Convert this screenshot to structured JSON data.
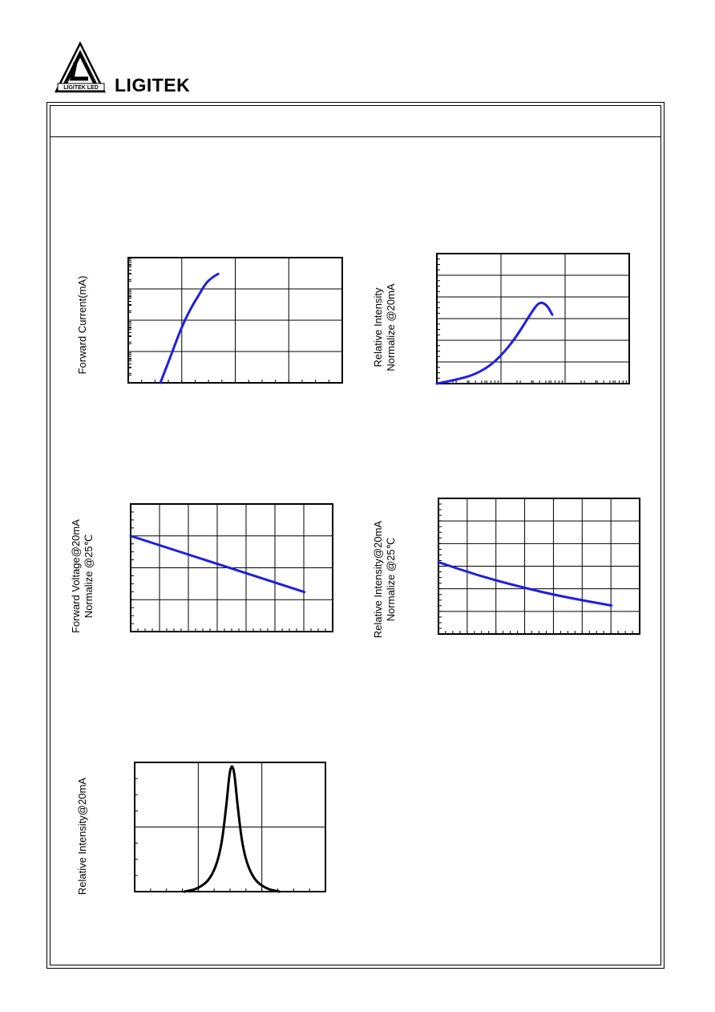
{
  "brand": "LIGITEK",
  "logo_text": "LIGITEK LED",
  "colors": {
    "curve_blue": "#1f1fe0",
    "curve_black": "#000000",
    "frame": "#000000"
  },
  "chart_data": [
    {
      "id": "forward-current",
      "type": "line",
      "ylabel": "Forward Current(mA)",
      "ylabel2": "",
      "yscale": "log",
      "grid": true,
      "x_grid_divisions": 4,
      "y_grid_divisions": 4,
      "color": "#1f1fe0",
      "series": [
        {
          "values": [
            [
              0.15,
              0.0
            ],
            [
              0.2,
              0.22
            ],
            [
              0.25,
              0.45
            ],
            [
              0.3,
              0.62
            ],
            [
              0.33,
              0.7
            ],
            [
              0.36,
              0.79
            ],
            [
              0.39,
              0.84
            ],
            [
              0.42,
              0.87
            ]
          ]
        }
      ]
    },
    {
      "id": "relative-intensity-vs-current",
      "type": "line",
      "ylabel": "Relative Intensity",
      "ylabel2": "Normalize @20mA",
      "xscale": "log",
      "grid": true,
      "x_grid_divisions": 3,
      "y_grid_divisions": 6,
      "color": "#1f1fe0",
      "series": [
        {
          "values": [
            [
              0.0,
              0.0
            ],
            [
              0.1,
              0.03
            ],
            [
              0.2,
              0.07
            ],
            [
              0.3,
              0.16
            ],
            [
              0.4,
              0.33
            ],
            [
              0.48,
              0.52
            ],
            [
              0.53,
              0.63
            ],
            [
              0.57,
              0.61
            ],
            [
              0.6,
              0.53
            ]
          ]
        }
      ]
    },
    {
      "id": "forward-voltage-vs-temp",
      "type": "line",
      "ylabel": "Forward Voltage@20mA",
      "ylabel2": "Normalize @25℃",
      "grid": true,
      "x_grid_divisions": 7,
      "y_grid_divisions": 4,
      "color": "#1f1fe0",
      "series": [
        {
          "values": [
            [
              0.0,
              0.75
            ],
            [
              0.86,
              0.31
            ]
          ]
        }
      ]
    },
    {
      "id": "relative-intensity-vs-temp",
      "type": "line",
      "ylabel": "Relative Intensity@20mA",
      "ylabel2": "Normalize @25℃",
      "grid": true,
      "x_grid_divisions": 7,
      "y_grid_divisions": 6,
      "color": "#1f1fe0",
      "series": [
        {
          "values": [
            [
              0.0,
              0.53
            ],
            [
              0.2,
              0.43
            ],
            [
              0.4,
              0.35
            ],
            [
              0.6,
              0.28
            ],
            [
              0.86,
              0.21
            ]
          ]
        }
      ]
    },
    {
      "id": "spectral-distribution",
      "type": "line",
      "ylabel": "Relative Intensity@20mA",
      "ylabel2": "",
      "grid": true,
      "x_grid_divisions": 3,
      "y_grid_divisions": 2,
      "color": "#000000",
      "series": [
        {
          "values": [
            [
              0.26,
              0.0
            ],
            [
              0.33,
              0.02
            ],
            [
              0.4,
              0.1
            ],
            [
              0.45,
              0.3
            ],
            [
              0.48,
              0.65
            ],
            [
              0.5,
              0.97
            ],
            [
              0.52,
              0.97
            ],
            [
              0.54,
              0.65
            ],
            [
              0.57,
              0.3
            ],
            [
              0.62,
              0.1
            ],
            [
              0.69,
              0.02
            ],
            [
              0.76,
              0.0
            ]
          ]
        }
      ]
    }
  ]
}
